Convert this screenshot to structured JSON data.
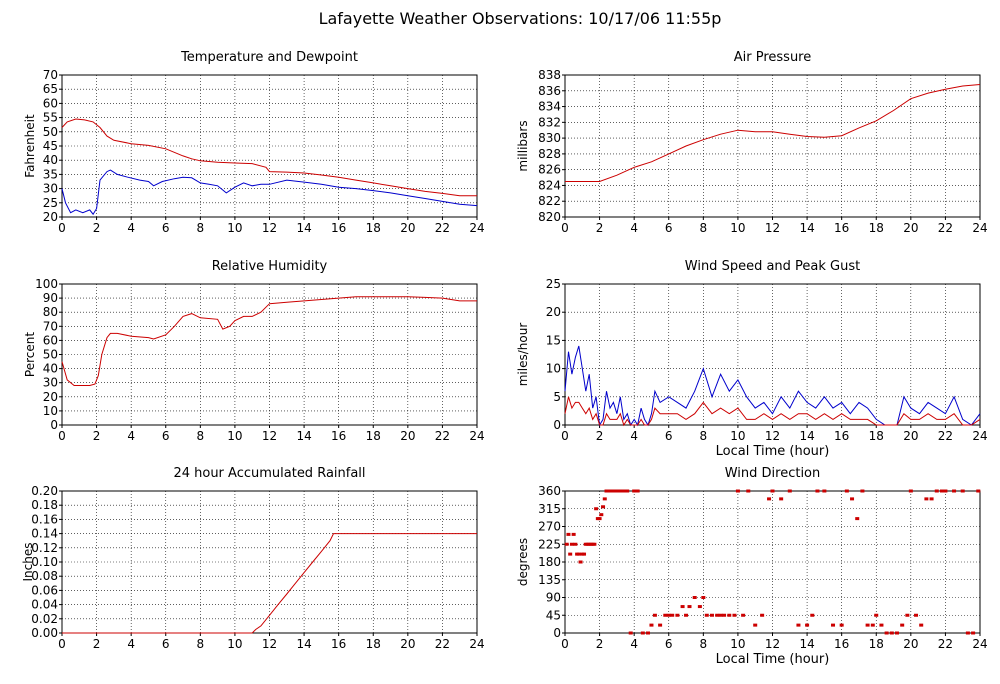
{
  "page_title": "Lafayette Weather Observations: 10/17/06 11:55p",
  "colors": {
    "red": "#cc0000",
    "blue": "#0000cc",
    "grid": "#000000",
    "background": "#ffffff"
  },
  "chart_data": [
    {
      "id": "temp",
      "type": "line",
      "title": "Temperature and Dewpoint",
      "xlabel": "",
      "ylabel": "Fahrenheit",
      "xlim": [
        0,
        24
      ],
      "ylim": [
        20,
        70
      ],
      "xticks": [
        0,
        2,
        4,
        6,
        8,
        10,
        12,
        14,
        16,
        18,
        20,
        22,
        24
      ],
      "yticks": [
        20,
        25,
        30,
        35,
        40,
        45,
        50,
        55,
        60,
        65,
        70
      ],
      "grid": true,
      "series": [
        {
          "color": "#cc0000",
          "x": [
            0,
            0.3,
            0.8,
            1.3,
            1.8,
            2.2,
            2.6,
            3.0,
            4.0,
            5.0,
            6.0,
            7.0,
            7.5,
            8.0,
            9.0,
            10.0,
            11.0,
            11.8,
            12.0,
            13.0,
            14.0,
            15.0,
            16.0,
            17.0,
            18.0,
            19.0,
            20.0,
            21.0,
            22.0,
            23.0,
            24.0
          ],
          "y": [
            51.5,
            53.5,
            54.5,
            54.2,
            53.5,
            51.5,
            48.5,
            47,
            45.8,
            45.2,
            44,
            41.5,
            40.5,
            39.8,
            39.3,
            39,
            38.8,
            37.5,
            36,
            35.8,
            35.5,
            34.8,
            34,
            33,
            32,
            31,
            30,
            29,
            28.3,
            27.5,
            27.5
          ]
        },
        {
          "color": "#0000cc",
          "x": [
            0,
            0.2,
            0.5,
            0.8,
            1.2,
            1.6,
            1.8,
            2.0,
            2.2,
            2.6,
            2.8,
            3.2,
            3.8,
            4.5,
            5.0,
            5.3,
            5.8,
            6.5,
            7.0,
            7.5,
            8.0,
            8.5,
            9.0,
            9.5,
            10.0,
            10.5,
            11.0,
            11.5,
            12.0,
            13.0,
            14.0,
            15.0,
            16.0,
            17.0,
            18.0,
            19.0,
            20.0,
            21.0,
            22.0,
            23.0,
            24.0
          ],
          "y": [
            30,
            25,
            21.5,
            22.5,
            21.5,
            22.5,
            21,
            23,
            33,
            36,
            36.5,
            35,
            34,
            33,
            32.5,
            31,
            32.5,
            33.5,
            34,
            33.8,
            32,
            31.5,
            31,
            28.5,
            30.5,
            32,
            31,
            31.5,
            31.5,
            33,
            32.3,
            31.5,
            30.5,
            30,
            29.3,
            28.5,
            27.5,
            26.5,
            25.5,
            24.5,
            24
          ]
        }
      ]
    },
    {
      "id": "pressure",
      "type": "line",
      "title": "Air Pressure",
      "xlabel": "",
      "ylabel": "millibars",
      "xlim": [
        0,
        24
      ],
      "ylim": [
        820,
        838
      ],
      "xticks": [
        0,
        2,
        4,
        6,
        8,
        10,
        12,
        14,
        16,
        18,
        20,
        22,
        24
      ],
      "yticks": [
        820,
        822,
        824,
        826,
        828,
        830,
        832,
        834,
        836,
        838
      ],
      "grid": true,
      "series": [
        {
          "color": "#cc0000",
          "x": [
            0,
            1,
            2,
            3,
            4,
            5,
            6,
            7,
            8,
            9,
            10,
            11,
            12,
            13,
            14,
            15,
            16,
            17,
            18,
            19,
            20,
            21,
            22,
            23,
            24
          ],
          "y": [
            824.5,
            824.5,
            824.5,
            825.3,
            826.3,
            827.0,
            828.0,
            829.0,
            829.8,
            830.5,
            831.0,
            830.8,
            830.8,
            830.5,
            830.2,
            830.1,
            830.3,
            831.3,
            832.2,
            833.5,
            835.0,
            835.7,
            836.2,
            836.6,
            836.8
          ]
        }
      ]
    },
    {
      "id": "humidity",
      "type": "line",
      "title": "Relative Humidity",
      "xlabel": "",
      "ylabel": "Percent",
      "xlim": [
        0,
        24
      ],
      "ylim": [
        0,
        100
      ],
      "xticks": [
        0,
        2,
        4,
        6,
        8,
        10,
        12,
        14,
        16,
        18,
        20,
        22,
        24
      ],
      "yticks": [
        0,
        10,
        20,
        30,
        40,
        50,
        60,
        70,
        80,
        90,
        100
      ],
      "grid": true,
      "series": [
        {
          "color": "#cc0000",
          "x": [
            0,
            0.3,
            0.7,
            1.2,
            1.6,
            1.9,
            2.1,
            2.3,
            2.6,
            2.8,
            3.2,
            4.0,
            5.0,
            5.3,
            6.0,
            6.5,
            7.0,
            7.5,
            8.0,
            9.0,
            9.3,
            9.7,
            10.0,
            10.5,
            11.0,
            11.5,
            12.0,
            13.0,
            14.0,
            15.0,
            16.0,
            17.0,
            18.0,
            19.0,
            20.0,
            21.0,
            22.0,
            22.5,
            23.0,
            24.0
          ],
          "y": [
            45,
            32,
            28,
            28,
            28,
            29,
            35,
            50,
            62,
            65,
            65,
            63,
            62,
            61,
            64,
            70,
            77,
            79,
            76,
            75,
            68,
            70,
            74,
            77,
            77,
            80,
            86,
            87,
            88,
            89,
            90,
            91,
            91,
            91,
            91,
            90.5,
            90,
            89,
            88,
            88
          ]
        }
      ]
    },
    {
      "id": "wind",
      "type": "line",
      "title": "Wind Speed and Peak Gust",
      "xlabel": "Local Time (hour)",
      "ylabel": "miles/hour",
      "xlim": [
        0,
        24
      ],
      "ylim": [
        0,
        25
      ],
      "xticks": [
        0,
        2,
        4,
        6,
        8,
        10,
        12,
        14,
        16,
        18,
        20,
        22,
        24
      ],
      "yticks": [
        0,
        5,
        10,
        15,
        20,
        25
      ],
      "grid": true,
      "series": [
        {
          "color": "#0000cc",
          "x": [
            0,
            0.2,
            0.4,
            0.6,
            0.8,
            1.0,
            1.2,
            1.4,
            1.6,
            1.8,
            2.0,
            2.2,
            2.4,
            2.6,
            2.8,
            3.0,
            3.2,
            3.4,
            3.6,
            3.8,
            4.0,
            4.2,
            4.4,
            4.6,
            4.8,
            5.0,
            5.2,
            5.5,
            6.0,
            6.5,
            7.0,
            7.5,
            8.0,
            8.5,
            9.0,
            9.5,
            10.0,
            10.5,
            11.0,
            11.5,
            12.0,
            12.5,
            13.0,
            13.5,
            14.0,
            14.5,
            15.0,
            15.5,
            16.0,
            16.5,
            17.0,
            17.5,
            18.0,
            18.5,
            18.8,
            19.2,
            19.6,
            20.0,
            20.5,
            21.0,
            21.5,
            22.0,
            22.5,
            23.0,
            23.5,
            24.0
          ],
          "y": [
            6,
            13,
            9,
            12,
            14,
            10,
            6,
            9,
            3,
            5,
            0,
            1,
            6,
            3,
            4,
            2,
            5,
            1,
            2,
            0,
            1,
            0,
            3,
            1,
            0,
            2,
            6,
            4,
            5,
            4,
            3,
            6,
            10,
            5,
            9,
            6,
            8,
            5,
            3,
            4,
            2,
            5,
            3,
            6,
            4,
            3,
            5,
            3,
            4,
            2,
            4,
            3,
            1,
            0,
            0,
            0,
            5,
            3,
            2,
            4,
            3,
            2,
            5,
            1,
            0,
            2
          ]
        },
        {
          "color": "#cc0000",
          "x": [
            0,
            0.2,
            0.4,
            0.6,
            0.8,
            1.0,
            1.2,
            1.4,
            1.6,
            1.8,
            2.0,
            2.2,
            2.4,
            2.6,
            2.8,
            3.0,
            3.2,
            3.4,
            3.6,
            3.8,
            4.0,
            4.2,
            4.4,
            4.6,
            4.8,
            5.0,
            5.2,
            5.5,
            6.0,
            6.5,
            7.0,
            7.5,
            8.0,
            8.5,
            9.0,
            9.5,
            10.0,
            10.5,
            11.0,
            11.5,
            12.0,
            12.5,
            13.0,
            13.5,
            14.0,
            14.5,
            15.0,
            15.5,
            16.0,
            16.5,
            17.0,
            17.5,
            18.0,
            18.5,
            18.8,
            19.2,
            19.6,
            20.0,
            20.5,
            21.0,
            21.5,
            22.0,
            22.5,
            23.0,
            23.5,
            24.0
          ],
          "y": [
            2,
            5,
            3,
            4,
            4,
            3,
            2,
            3,
            1,
            2,
            0,
            0,
            2,
            1,
            1,
            1,
            2,
            0,
            1,
            0,
            0,
            0,
            1,
            0,
            0,
            1,
            3,
            2,
            2,
            2,
            1,
            2,
            4,
            2,
            3,
            2,
            3,
            1,
            1,
            2,
            1,
            2,
            1,
            2,
            2,
            1,
            2,
            1,
            2,
            1,
            1,
            1,
            0,
            0,
            0,
            0,
            2,
            1,
            1,
            2,
            1,
            1,
            2,
            0,
            0,
            1
          ]
        }
      ]
    },
    {
      "id": "rain",
      "type": "line",
      "title": "24 hour Accumulated Rainfall",
      "xlabel": "",
      "ylabel": "Inches",
      "xlim": [
        0,
        24
      ],
      "ylim": [
        0,
        0.2
      ],
      "xticks": [
        0,
        2,
        4,
        6,
        8,
        10,
        12,
        14,
        16,
        18,
        20,
        22,
        24
      ],
      "yticks": [
        "0.00",
        "0.02",
        "0.04",
        "0.06",
        "0.08",
        "0.10",
        "0.12",
        "0.14",
        "0.16",
        "0.18",
        "0.20"
      ],
      "grid": true,
      "series": [
        {
          "color": "#cc0000",
          "x": [
            0,
            11.0,
            11.2,
            11.5,
            12.0,
            12.5,
            13.0,
            13.5,
            14.0,
            14.5,
            15.0,
            15.5,
            15.7,
            16.0,
            24.0
          ],
          "y": [
            0,
            0,
            0.005,
            0.01,
            0.025,
            0.04,
            0.055,
            0.07,
            0.085,
            0.1,
            0.115,
            0.13,
            0.14,
            0.14,
            0.14
          ]
        }
      ]
    },
    {
      "id": "winddir",
      "type": "scatter",
      "title": "Wind Direction",
      "xlabel": "Local Time (hour)",
      "ylabel": "degrees",
      "xlim": [
        0,
        24
      ],
      "ylim": [
        0,
        360
      ],
      "xticks": [
        0,
        2,
        4,
        6,
        8,
        10,
        12,
        14,
        16,
        18,
        20,
        22,
        24
      ],
      "yticks": [
        0,
        45,
        90,
        135,
        180,
        225,
        270,
        315,
        360
      ],
      "grid": true,
      "series": [
        {
          "color": "#cc0000",
          "x": [
            0.1,
            0.2,
            0.3,
            0.4,
            0.5,
            0.6,
            0.7,
            0.8,
            0.9,
            1.0,
            1.1,
            1.2,
            1.3,
            1.4,
            1.5,
            1.6,
            1.7,
            1.8,
            1.9,
            2.0,
            2.1,
            2.2,
            2.3,
            2.4,
            2.5,
            2.6,
            2.8,
            3.0,
            3.2,
            3.4,
            3.6,
            3.8,
            4.0,
            4.2,
            4.5,
            4.8,
            5.0,
            5.2,
            5.5,
            5.8,
            6.0,
            6.2,
            6.5,
            6.8,
            7.0,
            7.2,
            7.5,
            7.8,
            8.0,
            8.2,
            8.5,
            8.8,
            9.0,
            9.2,
            9.5,
            9.8,
            10.0,
            10.3,
            10.6,
            11.0,
            11.4,
            11.8,
            12.0,
            12.5,
            13.0,
            13.5,
            14.0,
            14.3,
            14.6,
            15.0,
            15.5,
            16.0,
            16.3,
            16.6,
            16.9,
            17.2,
            17.5,
            17.8,
            18.0,
            18.3,
            18.6,
            18.9,
            19.2,
            19.5,
            19.8,
            20.0,
            20.3,
            20.6,
            20.9,
            21.2,
            21.5,
            21.8,
            22.0,
            22.5,
            23.0,
            23.3,
            23.6,
            23.9
          ],
          "y": [
            225,
            250,
            200,
            225,
            250,
            225,
            200,
            200,
            180,
            200,
            200,
            225,
            225,
            225,
            225,
            225,
            225,
            315,
            290,
            290,
            300,
            320,
            340,
            365,
            365,
            365,
            365,
            365,
            365,
            365,
            365,
            0,
            365,
            365,
            0,
            0,
            20,
            45,
            20,
            45,
            45,
            45,
            45,
            67,
            45,
            67,
            90,
            67,
            90,
            45,
            45,
            45,
            45,
            45,
            45,
            45,
            365,
            45,
            365,
            20,
            45,
            340,
            365,
            340,
            365,
            20,
            20,
            45,
            365,
            365,
            20,
            20,
            365,
            340,
            290,
            365,
            20,
            20,
            45,
            20,
            0,
            0,
            0,
            20,
            45,
            365,
            45,
            20,
            340,
            340,
            365,
            365,
            365,
            365,
            365,
            0,
            0,
            365
          ]
        }
      ]
    }
  ]
}
